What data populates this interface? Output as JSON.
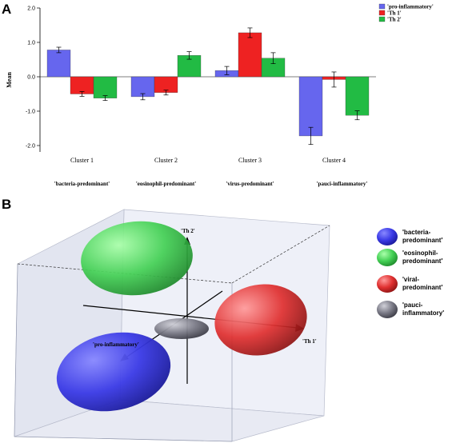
{
  "panels": {
    "a_label": "A",
    "b_label": "B"
  },
  "chart_data": [
    {
      "type": "bar",
      "ylabel": "Mean",
      "ylim": [
        -2.0,
        2.0
      ],
      "yticks": [
        "2.0",
        "1.0",
        "0.0",
        "-1.0",
        "-2.0"
      ],
      "ytick_values": [
        2.0,
        1.0,
        0.0,
        -1.0,
        -2.0
      ],
      "grid": false,
      "legend_position": "top-right",
      "categories": [
        "Cluster 1",
        "Cluster 2",
        "Cluster 3",
        "Cluster 4"
      ],
      "category_sublabels": [
        "'bacteria-predominant'",
        "'eosinophil-predominant'",
        "'virus-predominant'",
        "'pauci-inflammatory'"
      ],
      "series": [
        {
          "name": "'pro-inflammatory'",
          "color": "#6666ee",
          "values": [
            0.78,
            -0.58,
            0.18,
            -1.72
          ],
          "errors": [
            0.08,
            0.09,
            0.12,
            0.25
          ]
        },
        {
          "name": "'Th 1'",
          "color": "#ee2222",
          "values": [
            -0.5,
            -0.46,
            1.28,
            -0.08
          ],
          "errors": [
            0.07,
            0.07,
            0.14,
            0.22
          ]
        },
        {
          "name": "'Th 2'",
          "color": "#22bb44",
          "values": [
            -0.62,
            0.62,
            0.54,
            -1.12
          ],
          "errors": [
            0.07,
            0.11,
            0.16,
            0.13
          ]
        }
      ]
    },
    {
      "type": "scatter",
      "axes": {
        "x": "'Th 1'",
        "y": "'Th 2'",
        "z": "'pro-inflammatory'"
      },
      "clusters": [
        {
          "name": "'bacteria-predominant'",
          "label_line1": "'bacteria-",
          "label_line2": "predominant'",
          "color": "#3a3ae6"
        },
        {
          "name": "'eosinophil-predominant'",
          "label_line1": "'eosinophil-",
          "label_line2": "predominant'",
          "color": "#33cc44"
        },
        {
          "name": "'viral-predominant'",
          "label_line1": "'viral-",
          "label_line2": "predominant'",
          "color": "#e03030"
        },
        {
          "name": "'pauci-inflammatory'",
          "label_line1": "'pauci-",
          "label_line2": "inflammatory'",
          "color": "#555566"
        }
      ]
    }
  ]
}
